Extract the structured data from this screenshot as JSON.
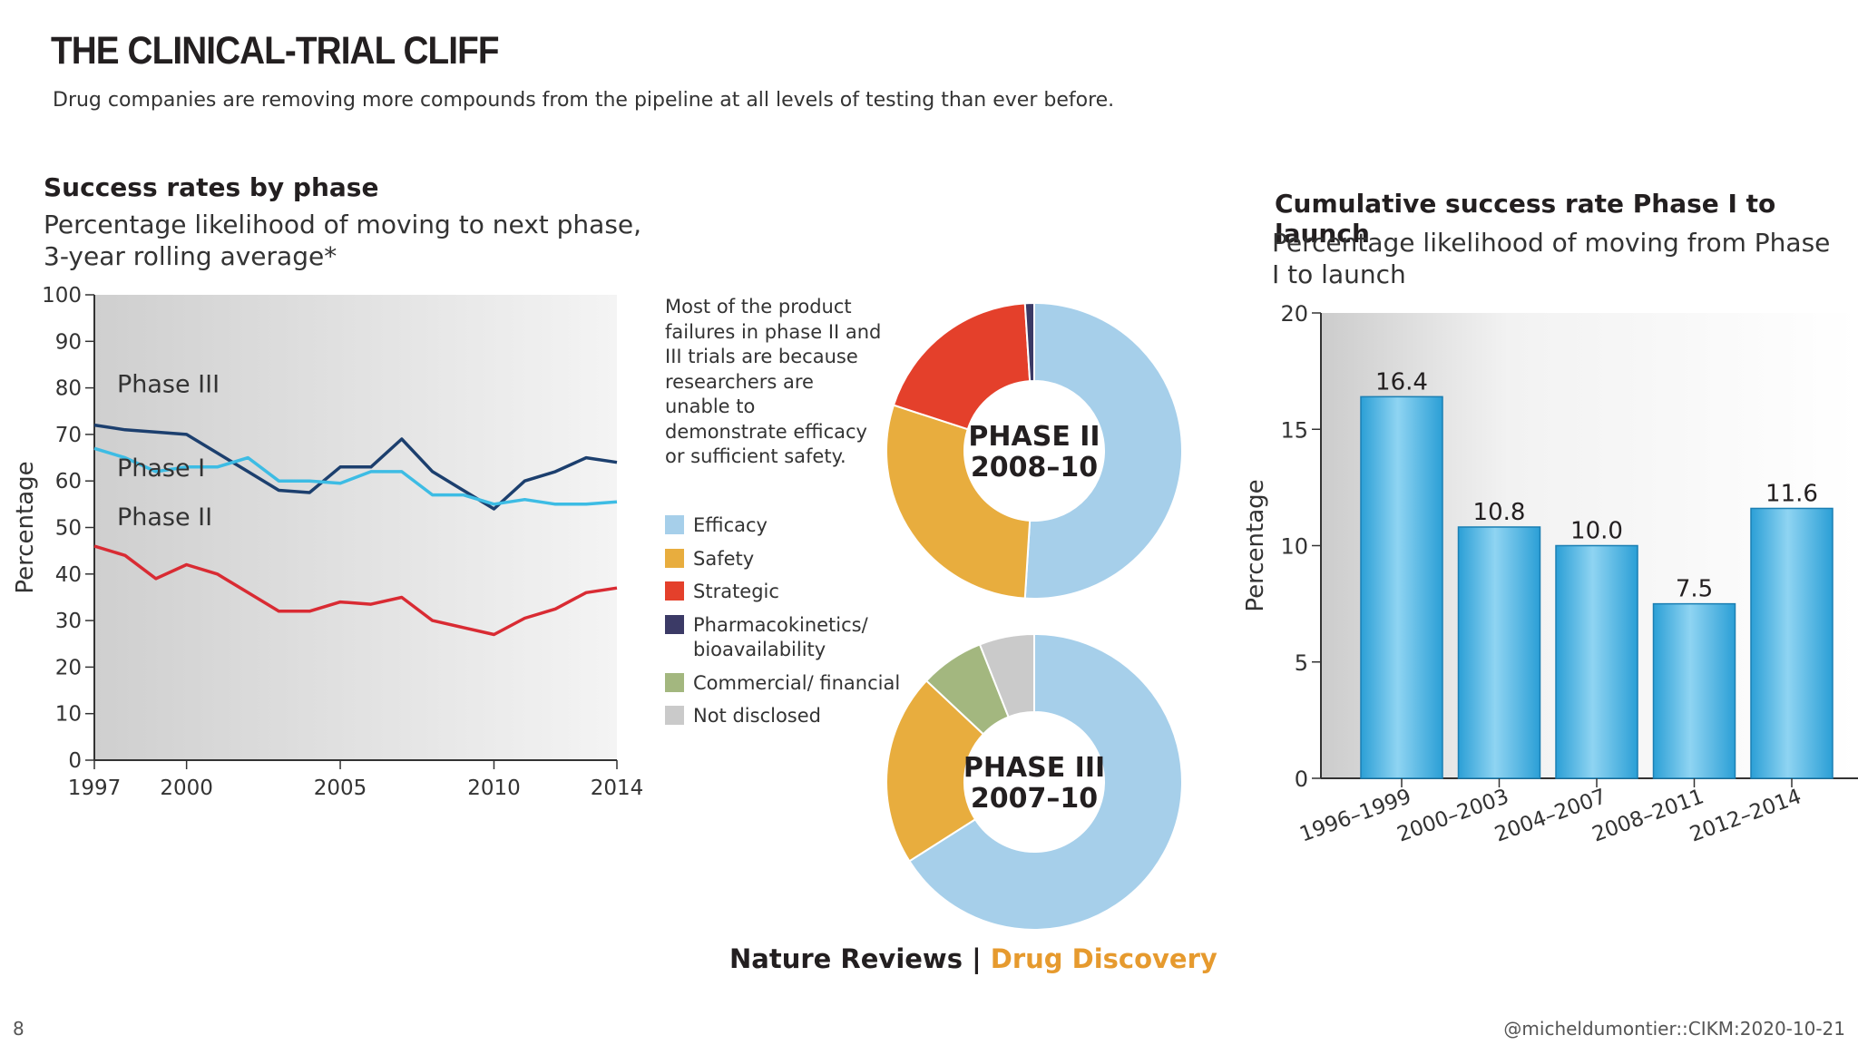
{
  "header": {
    "title": "THE CLINICAL-TRIAL CLIFF",
    "subtitle": "Drug companies are removing more compounds from the pipeline at all levels of testing than ever before."
  },
  "pie_note": "Most of the product failures in phase II and III trials are because researchers are unable to demonstrate efficacy or sufficient safety.",
  "legend": [
    {
      "label": "Efficacy",
      "color": "#a6cfea"
    },
    {
      "label": "Safety",
      "color": "#e8ad3e"
    },
    {
      "label": "Strategic",
      "color": "#e4402b"
    },
    {
      "label": "Pharmacokinetics/ bioavailability",
      "color": "#3b3a66"
    },
    {
      "label": "Commercial/ financial",
      "color": "#a3b77f"
    },
    {
      "label": "Not disclosed",
      "color": "#cacaca"
    }
  ],
  "source": {
    "prefix": "Nature Reviews | ",
    "accent": "Drug Discovery"
  },
  "footer": {
    "slide_number": "8",
    "credit": "@micheldumontier::CIKM:2020-10-21"
  },
  "chart_data": [
    {
      "type": "line",
      "title": "Success rates by phase",
      "subtitle": "Percentage likelihood of moving to next phase, 3-year rolling average*",
      "ylabel": "Percentage",
      "xlabel": "",
      "ylim": [
        0,
        100
      ],
      "xlim": [
        1997,
        2014
      ],
      "yticks": [
        0,
        10,
        20,
        30,
        40,
        50,
        60,
        70,
        80,
        90,
        100
      ],
      "xticks": [
        1997,
        2000,
        2005,
        2010,
        2014
      ],
      "grid": false,
      "series": [
        {
          "name": "Phase III",
          "color": "#1c3f6e",
          "x": [
            1997,
            1998,
            2000,
            2001,
            2002,
            2003,
            2004,
            2005,
            2006,
            2007,
            2008,
            2009,
            2010,
            2011,
            2012,
            2013,
            2014
          ],
          "y": [
            72,
            71,
            70,
            66,
            62,
            58,
            57.5,
            63,
            63,
            69,
            62,
            58,
            54,
            60,
            62,
            65,
            64
          ]
        },
        {
          "name": "Phase I",
          "color": "#3dbce4",
          "x": [
            1997,
            1998,
            1999,
            2000,
            2001,
            2002,
            2003,
            2004,
            2005,
            2006,
            2007,
            2008,
            2009,
            2010,
            2011,
            2012,
            2013,
            2014
          ],
          "y": [
            67,
            65,
            62,
            63,
            63,
            65,
            60,
            60,
            59.5,
            62,
            62,
            57,
            57,
            55,
            56,
            55,
            55,
            55.5
          ]
        },
        {
          "name": "Phase II",
          "color": "#d92b33",
          "x": [
            1997,
            1998,
            1999,
            2000,
            2001,
            2002,
            2003,
            2004,
            2005,
            2006,
            2007,
            2008,
            2009,
            2010,
            2011,
            2012,
            2013,
            2014
          ],
          "y": [
            46,
            44,
            39,
            42,
            40,
            36,
            32,
            32,
            34,
            33.5,
            35,
            30,
            28.5,
            27,
            30.5,
            32.5,
            36,
            37
          ]
        }
      ]
    },
    {
      "type": "pie",
      "title": "PHASE II 2008–10",
      "labels": [
        "Efficacy",
        "Safety",
        "Strategic",
        "Pharmacokinetics/ bioavailability"
      ],
      "values": [
        51,
        29,
        19,
        1
      ],
      "colors": [
        "#a6cfea",
        "#e8ad3e",
        "#e4402b",
        "#3b3a66"
      ]
    },
    {
      "type": "pie",
      "title": "PHASE III 2007–10",
      "labels": [
        "Efficacy",
        "Safety",
        "Commercial/ financial",
        "Not disclosed"
      ],
      "values": [
        66,
        21,
        7,
        6
      ],
      "colors": [
        "#a6cfea",
        "#e8ad3e",
        "#a3b77f",
        "#cacaca"
      ]
    },
    {
      "type": "bar",
      "title": "Cumulative success rate Phase I to launch",
      "subtitle": "Percentage likelihood of moving from Phase I to launch",
      "ylabel": "Percentage",
      "xlabel": "",
      "ylim": [
        0,
        20
      ],
      "yticks": [
        0,
        5,
        10,
        15,
        20
      ],
      "categories": [
        "1996–1999",
        "2000–2003",
        "2004–2007",
        "2008–2011",
        "2012–2014"
      ],
      "values": [
        16.4,
        10.8,
        10.0,
        7.5,
        11.6
      ],
      "value_labels": [
        "16.4",
        "10.8",
        "10.0",
        "7.5",
        "11.6"
      ]
    }
  ]
}
